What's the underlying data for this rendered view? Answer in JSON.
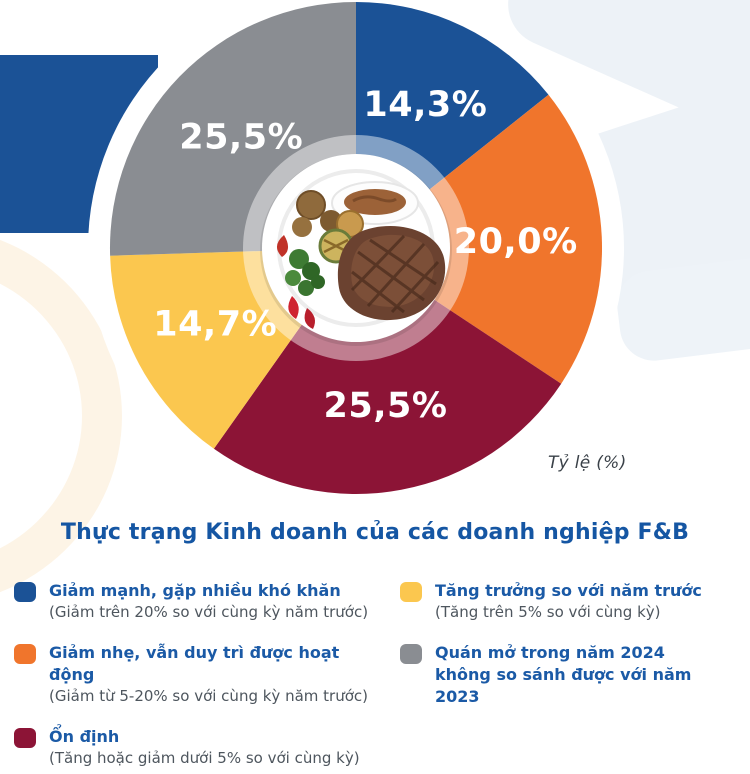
{
  "chart_data": {
    "type": "pie",
    "title": "Thực trạng Kinh doanh của các doanh nghiệp F&B",
    "unit_label": "Tỷ lệ (%)",
    "start_angle_deg": 0,
    "direction": "clockwise",
    "legend_position": "bottom-two-columns",
    "segments": [
      {
        "label": "Giảm mạnh, gặp nhiều khó khăn",
        "value": 14.3,
        "display": "14,3%",
        "color": "#1b5296"
      },
      {
        "label": "Giảm nhẹ, vẫn duy trì được hoạt động",
        "value": 20.0,
        "display": "20,0%",
        "color": "#f0752c"
      },
      {
        "label": "Ổn định",
        "value": 25.5,
        "display": "25,5%",
        "color": "#8c1436"
      },
      {
        "label": "Tăng trưởng so với năm trước",
        "value": 14.7,
        "display": "14,7%",
        "color": "#fbc74f"
      },
      {
        "label": "Quán mở trong năm 2024 không so sánh được với năm 2023",
        "value": 25.5,
        "display": "25,5%",
        "color": "#8a8d92"
      }
    ]
  },
  "legend": {
    "items": [
      {
        "column": 1,
        "color": "#1b5296",
        "label": "Giảm mạnh, gặp nhiều khó khăn",
        "desc": "(Giảm trên 20% so với cùng kỳ năm trước)"
      },
      {
        "column": 1,
        "color": "#f0752c",
        "label": "Giảm nhẹ, vẫn duy trì được hoạt động",
        "desc": "(Giảm từ 5-20% so với cùng kỳ năm trước)"
      },
      {
        "column": 1,
        "color": "#8c1436",
        "label": "Ổn định",
        "desc": "(Tăng hoặc giảm dưới 5% so với cùng kỳ)"
      },
      {
        "column": 2,
        "color": "#fbc74f",
        "label": "Tăng trưởng so với năm trước",
        "desc": "(Tăng trên 5% so với cùng kỳ)"
      },
      {
        "column": 2,
        "color": "#8a8d92",
        "label": "Quán mở trong năm 2024 không so sánh được với năm 2023",
        "desc": ""
      }
    ]
  },
  "colors": {
    "title_text": "#1556a3",
    "legend_label_text": "#1b5aa6",
    "desc_text": "#4e565e",
    "unit_label_text": "#3a4148",
    "deco_blue": "#1b5296",
    "deco_light": "#edf2f7",
    "deco_cream": "#fdf4e6"
  }
}
